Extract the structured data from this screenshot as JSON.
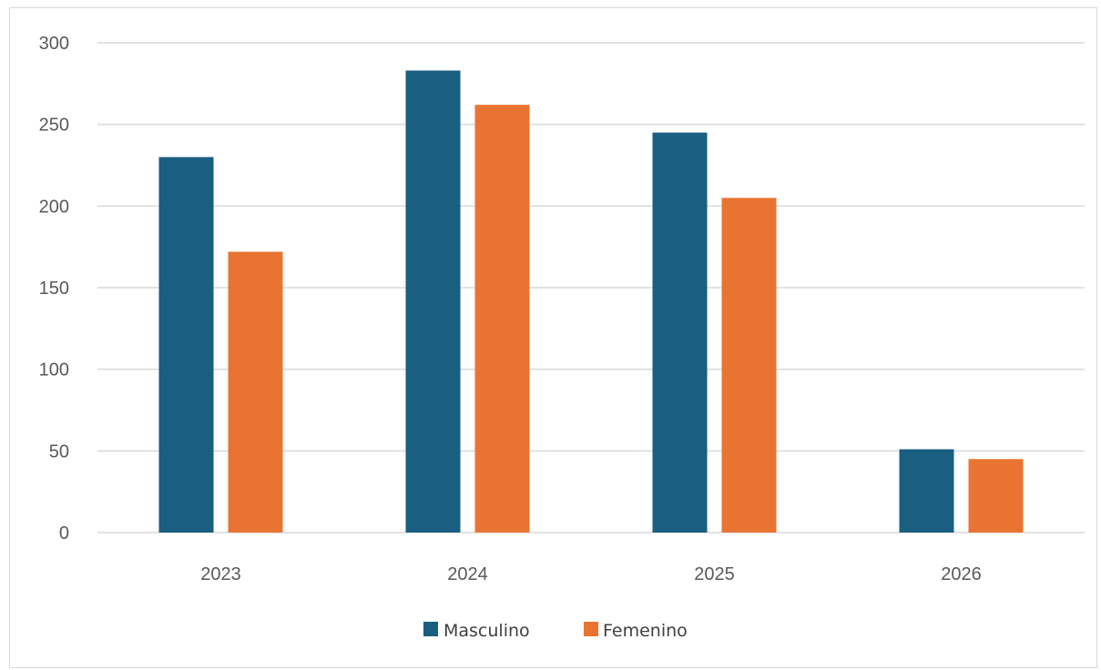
{
  "chart_data": {
    "type": "bar",
    "title": "",
    "xlabel": "",
    "ylabel": "",
    "categories": [
      "2023",
      "2024",
      "2025",
      "2026"
    ],
    "series": [
      {
        "name": "Masculino",
        "color": "#1a5e80",
        "values": [
          230,
          283,
          245,
          51
        ]
      },
      {
        "name": "Femenino",
        "color": "#e97431",
        "values": [
          172,
          262,
          205,
          45
        ]
      }
    ],
    "ylim": [
      0,
      300
    ],
    "yticks": [
      0,
      50,
      100,
      150,
      200,
      250,
      300
    ],
    "grid": true,
    "legend_position": "bottom"
  }
}
